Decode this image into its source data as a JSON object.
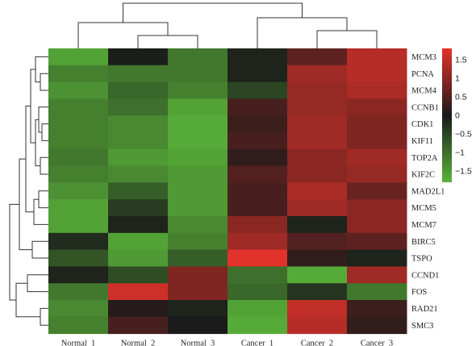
{
  "chart_data": {
    "type": "heatmap",
    "columns": [
      "Normal_1",
      "Normal_2",
      "Normal_3",
      "Cancer_1",
      "Cancer_2",
      "Cancer_3"
    ],
    "rows": [
      "MCM3",
      "PCNA",
      "MCM4",
      "CCNB1",
      "CDK1",
      "KIF11",
      "TOP2A",
      "KIF2C",
      "MAD2L1",
      "MCM5",
      "MCM7",
      "BIRC5",
      "TSPO",
      "CCND1",
      "FOS",
      "RAD21",
      "SMC3"
    ],
    "highlighted_row": "TSPO",
    "highlight_color": "#d8302b",
    "values": [
      [
        -1.6,
        -0.05,
        -1.1,
        -0.1,
        0.6,
        1.4
      ],
      [
        -1.2,
        -1.1,
        -1.1,
        -0.1,
        1.2,
        1.4
      ],
      [
        -1.4,
        -0.9,
        -1.2,
        -0.5,
        1.1,
        1.3
      ],
      [
        -1.2,
        -1.0,
        -1.6,
        0.4,
        1.1,
        1.0
      ],
      [
        -1.2,
        -1.3,
        -1.7,
        0.3,
        1.2,
        0.9
      ],
      [
        -1.2,
        -1.3,
        -1.7,
        0.4,
        1.2,
        0.9
      ],
      [
        -1.1,
        -1.5,
        -1.6,
        0.2,
        1.0,
        1.2
      ],
      [
        -1.2,
        -1.3,
        -1.5,
        0.5,
        1.0,
        1.1
      ],
      [
        -1.4,
        -0.8,
        -1.5,
        0.4,
        1.3,
        0.7
      ],
      [
        -1.6,
        -0.4,
        -1.5,
        0.4,
        1.2,
        1.0
      ],
      [
        -1.6,
        -0.1,
        -1.3,
        1.0,
        -0.1,
        1.0
      ],
      [
        -0.2,
        -1.6,
        -1.2,
        1.2,
        0.5,
        0.6
      ],
      [
        -0.7,
        -1.5,
        -0.8,
        1.8,
        0.2,
        -0.1
      ],
      [
        -0.1,
        -0.6,
        0.9,
        -1.0,
        -1.7,
        1.2
      ],
      [
        -1.1,
        1.6,
        0.9,
        -0.9,
        -0.3,
        -1.1
      ],
      [
        -1.3,
        0.1,
        -0.1,
        -1.6,
        1.5,
        0.3
      ],
      [
        -1.2,
        0.4,
        0.0,
        -1.7,
        1.4,
        0.2
      ]
    ],
    "colorbar": {
      "range": [
        -1.8,
        1.8
      ],
      "ticks": [
        "1.5",
        "1",
        "0.5",
        "0",
        "−0.5",
        "−1",
        "−1.5"
      ],
      "tick_values": [
        1.5,
        1,
        0.5,
        0,
        -0.5,
        -1,
        -1.5
      ],
      "low_color": "#5ab33a",
      "mid_color": "#1a1a1a",
      "high_color": "#e3322b"
    },
    "column_dendrogram": "Normal_2 and Normal_3 join first, then Normal_1; Cancer_2 and Cancer_3 join, then Cancer_1; the two groups join at the top",
    "row_dendrogram": "hierarchical clustering of rows shown on the left",
    "title": "",
    "xlabel": "",
    "ylabel": ""
  }
}
